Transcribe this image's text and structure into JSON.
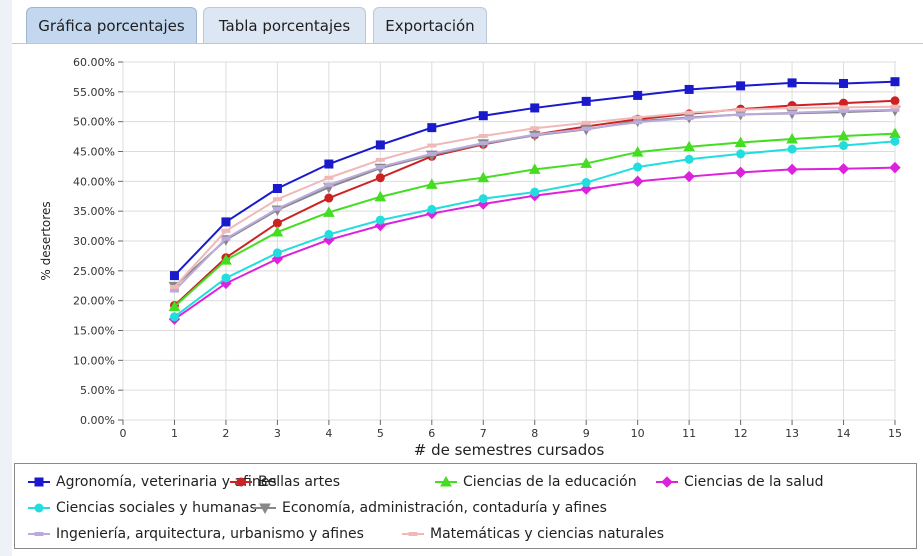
{
  "tabs": [
    {
      "label": "Gráfica porcentajes",
      "active": true
    },
    {
      "label": "Tabla porcentajes",
      "active": false
    },
    {
      "label": "Exportación",
      "active": false
    }
  ],
  "chart_data": {
    "type": "line",
    "title": "",
    "xlabel": "# de semestres cursados",
    "ylabel": "% desertores",
    "xlim": [
      0,
      15
    ],
    "ylim": [
      0,
      60
    ],
    "x": [
      1,
      2,
      3,
      4,
      5,
      6,
      7,
      8,
      9,
      10,
      11,
      12,
      13,
      14,
      15
    ],
    "x_ticks": [
      "0",
      "1",
      "2",
      "3",
      "4",
      "5",
      "6",
      "7",
      "8",
      "9",
      "10",
      "11",
      "12",
      "13",
      "14",
      "15"
    ],
    "y_ticks": [
      "0.00%",
      "5.00%",
      "10.00%",
      "15.00%",
      "20.00%",
      "25.00%",
      "30.00%",
      "35.00%",
      "40.00%",
      "45.00%",
      "50.00%",
      "55.00%",
      "60.00%"
    ],
    "grid": true,
    "legend_position": "bottom",
    "series": [
      {
        "name": "Agronomía, veterinaria y afines",
        "color": "#1a1acc",
        "marker": "square",
        "values": [
          24.2,
          33.2,
          38.8,
          42.9,
          46.1,
          49.0,
          51.0,
          52.3,
          53.4,
          54.4,
          55.4,
          56.0,
          56.5,
          56.4,
          56.7
        ]
      },
      {
        "name": "Bellas artes",
        "color": "#cc2222",
        "marker": "circle",
        "values": [
          19.2,
          27.2,
          33.0,
          37.2,
          40.6,
          44.2,
          46.2,
          47.8,
          49.2,
          50.4,
          51.3,
          52.1,
          52.7,
          53.1,
          53.5
        ]
      },
      {
        "name": "Ciencias de la educación",
        "color": "#44dd22",
        "marker": "triangle",
        "values": [
          19.0,
          26.8,
          31.5,
          34.8,
          37.4,
          39.5,
          40.6,
          42.0,
          43.0,
          44.9,
          45.8,
          46.5,
          47.1,
          47.6,
          48.0
        ]
      },
      {
        "name": "Ciencias de la salud",
        "color": "#dd22dd",
        "marker": "diamond",
        "values": [
          16.9,
          22.9,
          27.0,
          30.2,
          32.6,
          34.6,
          36.2,
          37.6,
          38.7,
          40.0,
          40.8,
          41.5,
          42.0,
          42.1,
          42.3
        ]
      },
      {
        "name": "Ciencias sociales y humanas",
        "color": "#22dddd",
        "marker": "circle",
        "values": [
          17.3,
          23.8,
          28.0,
          31.1,
          33.5,
          35.3,
          37.1,
          38.2,
          39.8,
          42.4,
          43.7,
          44.6,
          45.4,
          46.0,
          46.7
        ]
      },
      {
        "name": "Economía, administración, contaduría y afines",
        "color": "#888888",
        "marker": "triangle-down",
        "values": [
          22.4,
          30.2,
          35.2,
          39.0,
          42.2,
          44.4,
          46.3,
          47.7,
          48.7,
          50.1,
          50.7,
          51.2,
          51.4,
          51.6,
          51.9
        ]
      },
      {
        "name": "Ingeniería, arquitectura, urbanismo y afines",
        "color": "#bbaadd",
        "marker": "dash",
        "values": [
          21.7,
          30.4,
          35.4,
          39.4,
          42.4,
          44.6,
          46.4,
          47.8,
          48.8,
          49.9,
          50.6,
          51.2,
          51.5,
          51.8,
          52.0
        ]
      },
      {
        "name": "Matemáticas y ciencias naturales",
        "color": "#f0b8b8",
        "marker": "dash",
        "values": [
          22.3,
          31.7,
          37.0,
          40.6,
          43.6,
          46.0,
          47.6,
          48.9,
          49.8,
          50.7,
          51.5,
          52.0,
          52.3,
          52.4,
          52.5
        ]
      }
    ]
  }
}
